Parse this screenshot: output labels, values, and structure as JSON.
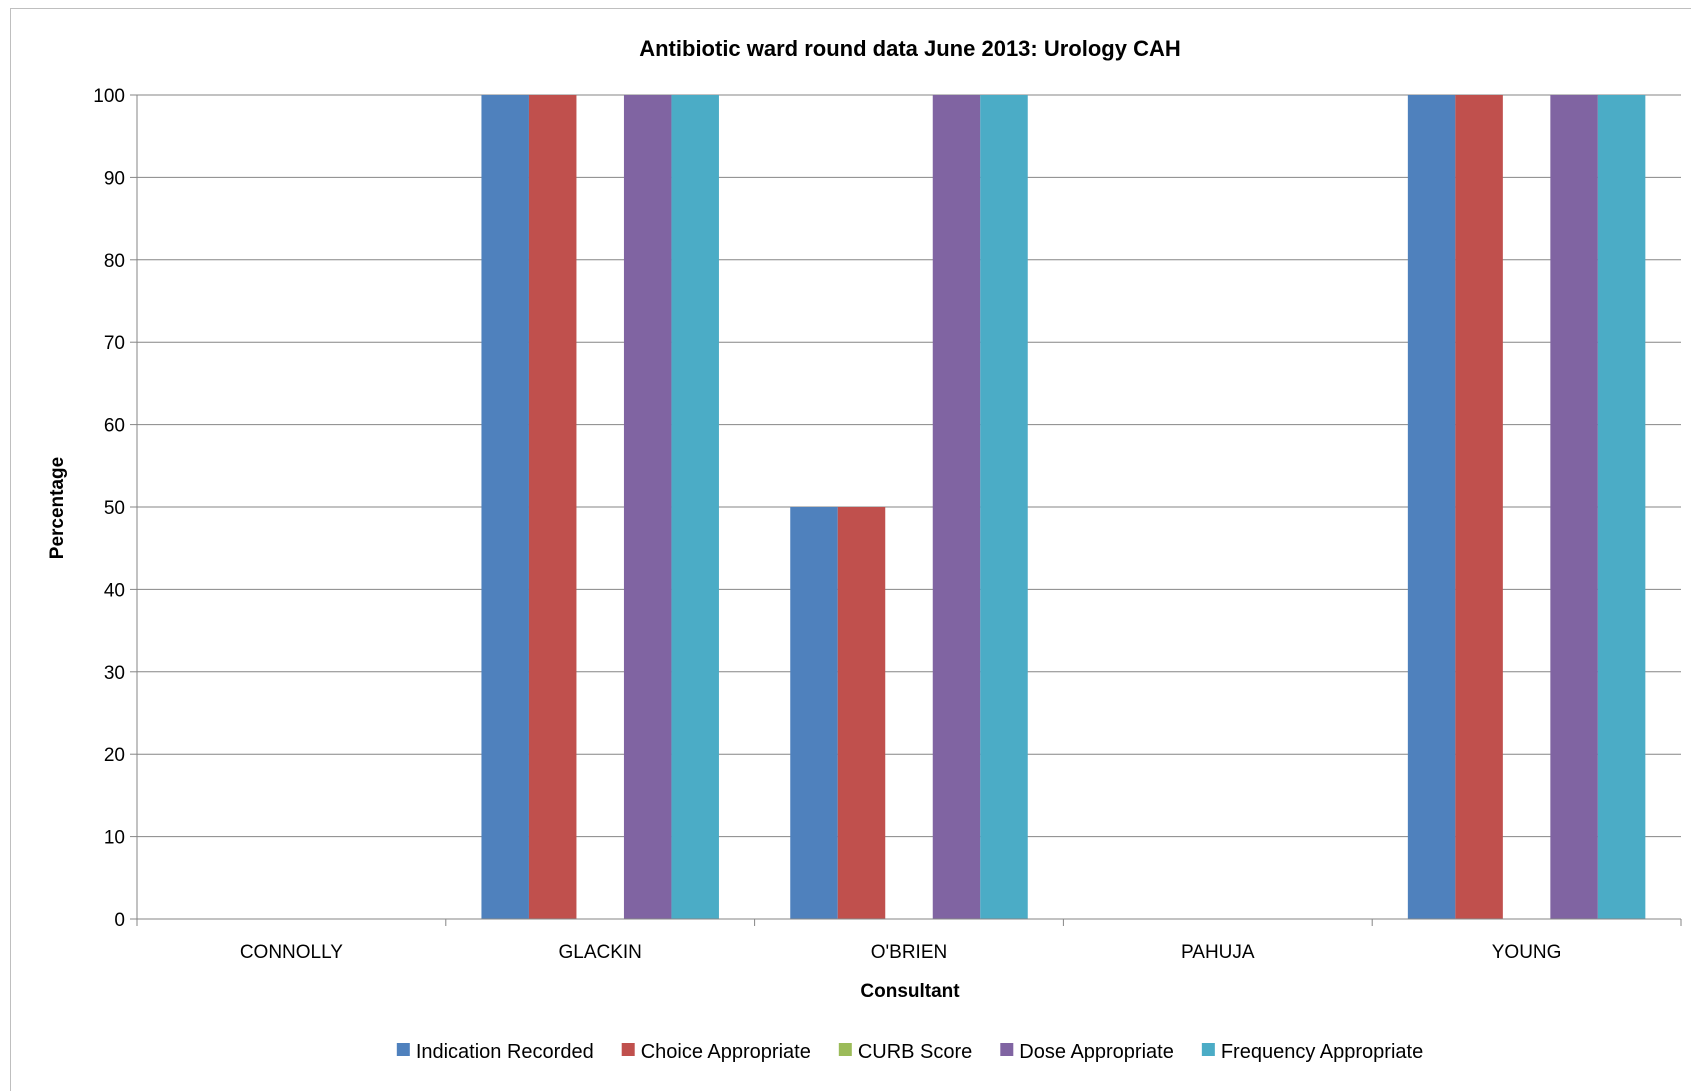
{
  "chart_data": {
    "type": "bar",
    "title": "Antibiotic ward round data June 2013: Urology CAH",
    "xlabel": "Consultant",
    "ylabel": "Percentage",
    "ylim": [
      0,
      100
    ],
    "yticks": [
      0,
      10,
      20,
      30,
      40,
      50,
      60,
      70,
      80,
      90,
      100
    ],
    "grid": true,
    "legend_position": "bottom",
    "categories": [
      "CONNOLLY",
      "GLACKIN",
      "O'BRIEN",
      "PAHUJA",
      "YOUNG"
    ],
    "series": [
      {
        "name": "Indication Recorded",
        "color": "#4f81bd",
        "values": [
          0,
          100,
          50,
          0,
          100
        ]
      },
      {
        "name": "Choice Appropriate",
        "color": "#c0504d",
        "values": [
          0,
          100,
          50,
          0,
          100
        ]
      },
      {
        "name": "CURB Score",
        "color": "#9bbb59",
        "values": [
          0,
          0,
          0,
          0,
          0
        ]
      },
      {
        "name": "Dose Appropriate",
        "color": "#8064a2",
        "values": [
          0,
          100,
          100,
          0,
          100
        ]
      },
      {
        "name": "Frequency Appropriate",
        "color": "#4bacc6",
        "values": [
          0,
          100,
          100,
          0,
          100
        ]
      }
    ]
  }
}
